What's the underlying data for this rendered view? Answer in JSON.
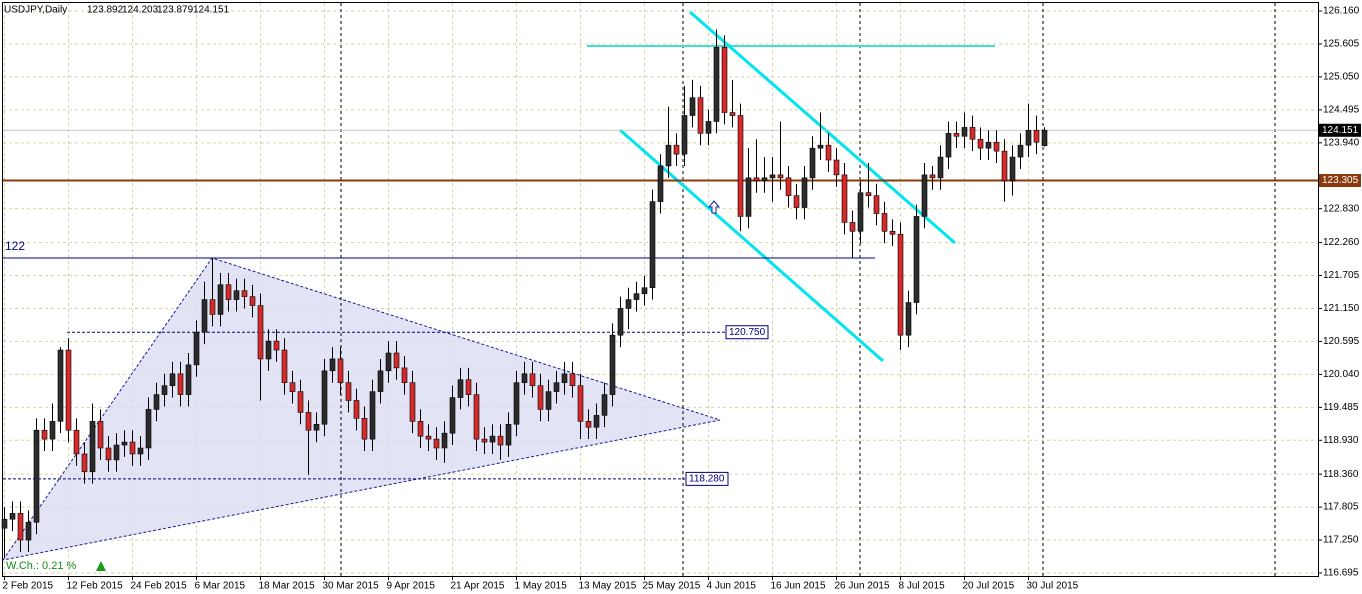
{
  "chart_data": {
    "type": "candlestick",
    "title": "USDJPY,Daily",
    "footer_text": "W.Ch.: 0.21 %",
    "up_color": "#2b2b2b",
    "down_color": "#d42a2a",
    "grid": true,
    "ylim": [
      116.695,
      126.16
    ],
    "yticks": [
      {
        "value": 126.16,
        "label": "126.160"
      },
      {
        "value": 125.605,
        "label": "125.605"
      },
      {
        "value": 125.05,
        "label": "125.050"
      },
      {
        "value": 124.495,
        "label": "124.495"
      },
      {
        "value": 123.94,
        "label": "123.940"
      },
      {
        "value": 122.83,
        "label": "122.830"
      },
      {
        "value": 122.26,
        "label": "122.260"
      },
      {
        "value": 121.705,
        "label": "121.705"
      },
      {
        "value": 121.15,
        "label": "121.150"
      },
      {
        "value": 120.595,
        "label": "120.595"
      },
      {
        "value": 120.04,
        "label": "120.040"
      },
      {
        "value": 119.485,
        "label": "119.485"
      },
      {
        "value": 118.93,
        "label": "118.930"
      },
      {
        "value": 118.36,
        "label": "118.360"
      },
      {
        "value": 117.805,
        "label": "117.805"
      },
      {
        "value": 117.25,
        "label": "117.250"
      },
      {
        "value": 116.695,
        "label": "116.695"
      }
    ],
    "levels": [
      {
        "value": 123.305,
        "color": "#8b3a0e"
      },
      {
        "value": 122,
        "color": "#000080"
      },
      {
        "value": 120.75,
        "label": "120.750",
        "color": "#000080"
      },
      {
        "value": 118.28,
        "label": "118.280",
        "color": "#000080"
      }
    ],
    "categories": [
      "2 Feb 2015",
      null,
      null,
      null,
      null,
      null,
      null,
      null,
      "12 Feb 2015",
      null,
      null,
      null,
      null,
      null,
      null,
      null,
      "24 Feb 2015",
      null,
      null,
      null,
      null,
      null,
      null,
      null,
      "6 Mar 2015",
      null,
      null,
      null,
      null,
      null,
      null,
      null,
      "18 Mar 2015",
      null,
      null,
      null,
      null,
      null,
      null,
      null,
      "30 Mar 2015",
      null,
      null,
      null,
      null,
      null,
      null,
      null,
      "9 Apr 2015",
      null,
      null,
      null,
      null,
      null,
      null,
      null,
      "21 Apr 2015",
      null,
      null,
      null,
      null,
      null,
      null,
      null,
      "1 May 2015",
      null,
      null,
      null,
      null,
      null,
      null,
      null,
      "13 May 2015",
      null,
      null,
      null,
      null,
      null,
      null,
      null,
      "25 May 2015",
      null,
      null,
      null,
      null,
      null,
      null,
      null,
      "4 Jun 2015",
      null,
      null,
      null,
      null,
      null,
      null,
      null,
      "16 Jun 2015",
      null,
      null,
      null,
      null,
      null,
      null,
      null,
      "26 Jun 2015",
      null,
      null,
      null,
      null,
      null,
      null,
      null,
      "8 Jul 2015",
      null,
      null,
      null,
      null,
      null,
      null,
      null,
      "20 Jul 2015",
      null,
      null,
      null,
      null,
      null,
      null,
      null,
      "30 Jul 2015",
      null,
      null
    ],
    "ohlc": [
      [
        117.45,
        117.8,
        116.95,
        117.6
      ],
      [
        117.6,
        117.9,
        117.4,
        117.7
      ],
      [
        117.7,
        117.9,
        117.05,
        117.25
      ],
      [
        117.25,
        117.75,
        117.05,
        117.55
      ],
      [
        117.55,
        119.3,
        117.35,
        119.1
      ],
      [
        119.1,
        119.3,
        118.75,
        118.95
      ],
      [
        118.95,
        119.55,
        118.75,
        119.25
      ],
      [
        119.25,
        120.5,
        119.05,
        120.45
      ],
      [
        120.45,
        120.65,
        118.9,
        119.1
      ],
      [
        119.1,
        119.3,
        118.5,
        118.7
      ],
      [
        118.7,
        118.9,
        118.2,
        118.4
      ],
      [
        118.4,
        119.55,
        118.2,
        119.25
      ],
      [
        119.25,
        119.45,
        118.6,
        118.8
      ],
      [
        118.8,
        119.0,
        118.4,
        118.6
      ],
      [
        118.6,
        119.05,
        118.4,
        118.85
      ],
      [
        118.85,
        119.1,
        118.65,
        118.9
      ],
      [
        118.9,
        119.1,
        118.5,
        118.7
      ],
      [
        118.7,
        119.0,
        118.5,
        118.8
      ],
      [
        118.8,
        119.65,
        118.6,
        119.45
      ],
      [
        119.45,
        119.9,
        119.25,
        119.7
      ],
      [
        119.7,
        120.05,
        119.5,
        119.85
      ],
      [
        119.85,
        120.25,
        119.65,
        120.05
      ],
      [
        120.05,
        120.25,
        119.5,
        119.7
      ],
      [
        119.7,
        120.4,
        119.5,
        120.2
      ],
      [
        120.2,
        120.95,
        120.0,
        120.75
      ],
      [
        120.75,
        121.6,
        120.55,
        121.3
      ],
      [
        121.3,
        122.0,
        120.85,
        121.05
      ],
      [
        121.05,
        121.75,
        120.85,
        121.55
      ],
      [
        121.55,
        121.75,
        121.1,
        121.3
      ],
      [
        121.3,
        121.65,
        121.1,
        121.45
      ],
      [
        121.45,
        121.65,
        121.15,
        121.35
      ],
      [
        121.35,
        121.55,
        121.0,
        121.2
      ],
      [
        121.2,
        121.4,
        119.6,
        120.3
      ],
      [
        120.3,
        120.8,
        120.1,
        120.6
      ],
      [
        120.6,
        120.8,
        120.25,
        120.45
      ],
      [
        120.45,
        120.65,
        119.7,
        119.9
      ],
      [
        119.9,
        120.1,
        119.55,
        119.75
      ],
      [
        119.75,
        119.95,
        119.2,
        119.4
      ],
      [
        119.4,
        119.6,
        118.35,
        119.1
      ],
      [
        119.1,
        119.4,
        118.9,
        119.2
      ],
      [
        119.2,
        120.3,
        119.0,
        120.1
      ],
      [
        120.1,
        120.5,
        119.9,
        120.3
      ],
      [
        120.3,
        120.5,
        119.7,
        119.9
      ],
      [
        119.9,
        120.1,
        119.4,
        119.6
      ],
      [
        119.6,
        119.8,
        119.1,
        119.3
      ],
      [
        119.3,
        119.5,
        118.75,
        118.95
      ],
      [
        118.95,
        119.95,
        118.75,
        119.75
      ],
      [
        119.75,
        120.3,
        119.55,
        120.1
      ],
      [
        120.1,
        120.6,
        119.9,
        120.4
      ],
      [
        120.4,
        120.6,
        119.95,
        120.15
      ],
      [
        120.15,
        120.35,
        119.7,
        119.9
      ],
      [
        119.9,
        120.1,
        119.05,
        119.25
      ],
      [
        119.25,
        119.45,
        118.8,
        119.0
      ],
      [
        119.0,
        119.2,
        118.75,
        118.95
      ],
      [
        118.95,
        119.15,
        118.6,
        118.8
      ],
      [
        118.8,
        119.25,
        118.55,
        119.05
      ],
      [
        119.05,
        119.85,
        118.85,
        119.65
      ],
      [
        119.65,
        120.15,
        119.45,
        119.95
      ],
      [
        119.95,
        120.15,
        119.5,
        119.7
      ],
      [
        119.7,
        119.9,
        118.75,
        118.95
      ],
      [
        118.95,
        119.15,
        118.7,
        118.9
      ],
      [
        118.9,
        119.2,
        118.7,
        119.0
      ],
      [
        119.0,
        119.2,
        118.6,
        118.85
      ],
      [
        118.85,
        119.4,
        118.65,
        119.2
      ],
      [
        119.2,
        120.1,
        119.0,
        119.9
      ],
      [
        119.9,
        120.25,
        119.7,
        120.05
      ],
      [
        120.05,
        120.25,
        119.65,
        119.85
      ],
      [
        119.85,
        120.05,
        119.25,
        119.45
      ],
      [
        119.45,
        119.95,
        119.25,
        119.75
      ],
      [
        119.75,
        120.1,
        119.55,
        119.9
      ],
      [
        119.9,
        120.25,
        119.7,
        120.05
      ],
      [
        120.05,
        120.25,
        119.65,
        119.85
      ],
      [
        119.85,
        120.05,
        118.95,
        119.25
      ],
      [
        119.25,
        119.45,
        118.95,
        119.15
      ],
      [
        119.15,
        119.55,
        118.95,
        119.35
      ],
      [
        119.35,
        119.9,
        119.15,
        119.7
      ],
      [
        119.7,
        120.9,
        119.5,
        120.7
      ],
      [
        120.7,
        121.35,
        120.5,
        121.15
      ],
      [
        121.15,
        121.5,
        120.8,
        121.3
      ],
      [
        121.3,
        121.6,
        121.1,
        121.4
      ],
      [
        121.4,
        121.7,
        121.2,
        121.5
      ],
      [
        121.5,
        123.15,
        121.3,
        122.95
      ],
      [
        122.95,
        123.75,
        122.75,
        123.55
      ],
      [
        123.55,
        124.55,
        123.35,
        123.9
      ],
      [
        123.9,
        124.1,
        123.55,
        123.75
      ],
      [
        123.75,
        124.9,
        123.55,
        124.4
      ],
      [
        124.4,
        125.0,
        124.2,
        124.7
      ],
      [
        124.7,
        124.9,
        123.9,
        124.1
      ],
      [
        124.1,
        124.5,
        123.9,
        124.3
      ],
      [
        124.3,
        125.85,
        124.1,
        125.55
      ],
      [
        125.55,
        125.75,
        124.25,
        124.45
      ],
      [
        124.45,
        125.0,
        124.2,
        124.4
      ],
      [
        124.4,
        124.6,
        122.45,
        122.7
      ],
      [
        122.7,
        123.85,
        122.5,
        123.35
      ],
      [
        123.35,
        124.0,
        123.1,
        123.3
      ],
      [
        123.3,
        123.7,
        123.1,
        123.35
      ],
      [
        123.35,
        123.7,
        122.95,
        123.4
      ],
      [
        123.4,
        124.3,
        123.15,
        123.35
      ],
      [
        123.35,
        123.55,
        122.85,
        123.05
      ],
      [
        123.05,
        123.25,
        122.65,
        122.85
      ],
      [
        122.85,
        123.55,
        122.65,
        123.35
      ],
      [
        123.35,
        124.05,
        123.15,
        123.85
      ],
      [
        123.85,
        124.45,
        123.65,
        123.9
      ],
      [
        123.9,
        124.1,
        123.45,
        123.65
      ],
      [
        123.65,
        123.85,
        123.2,
        123.4
      ],
      [
        123.4,
        123.6,
        122.4,
        122.6
      ],
      [
        122.6,
        122.8,
        122.0,
        122.45
      ],
      [
        122.45,
        123.3,
        122.25,
        123.1
      ],
      [
        123.1,
        123.6,
        122.85,
        123.05
      ],
      [
        123.05,
        123.25,
        122.55,
        122.75
      ],
      [
        122.75,
        122.95,
        122.25,
        122.45
      ],
      [
        122.45,
        122.65,
        122.2,
        122.4
      ],
      [
        122.4,
        122.6,
        120.45,
        120.7
      ],
      [
        120.7,
        121.45,
        120.5,
        121.25
      ],
      [
        121.25,
        122.9,
        121.05,
        122.7
      ],
      [
        122.7,
        123.6,
        122.5,
        123.4
      ],
      [
        123.4,
        123.55,
        123.15,
        123.35
      ],
      [
        123.35,
        123.9,
        123.15,
        123.7
      ],
      [
        123.7,
        124.3,
        123.5,
        124.1
      ],
      [
        124.1,
        124.3,
        123.85,
        124.05
      ],
      [
        124.05,
        124.45,
        123.85,
        124.2
      ],
      [
        124.2,
        124.4,
        123.8,
        124.0
      ],
      [
        124.0,
        124.2,
        123.65,
        123.85
      ],
      [
        123.85,
        124.15,
        123.65,
        123.95
      ],
      [
        123.95,
        124.15,
        123.6,
        123.8
      ],
      [
        123.8,
        124.0,
        122.95,
        123.3
      ],
      [
        123.3,
        123.9,
        123.05,
        123.7
      ],
      [
        123.7,
        124.1,
        123.5,
        123.9
      ],
      [
        123.9,
        124.6,
        123.7,
        124.15
      ],
      [
        124.15,
        124.4,
        123.75,
        123.95
      ],
      [
        123.892,
        124.203,
        123.879,
        124.151
      ]
    ]
  }
}
